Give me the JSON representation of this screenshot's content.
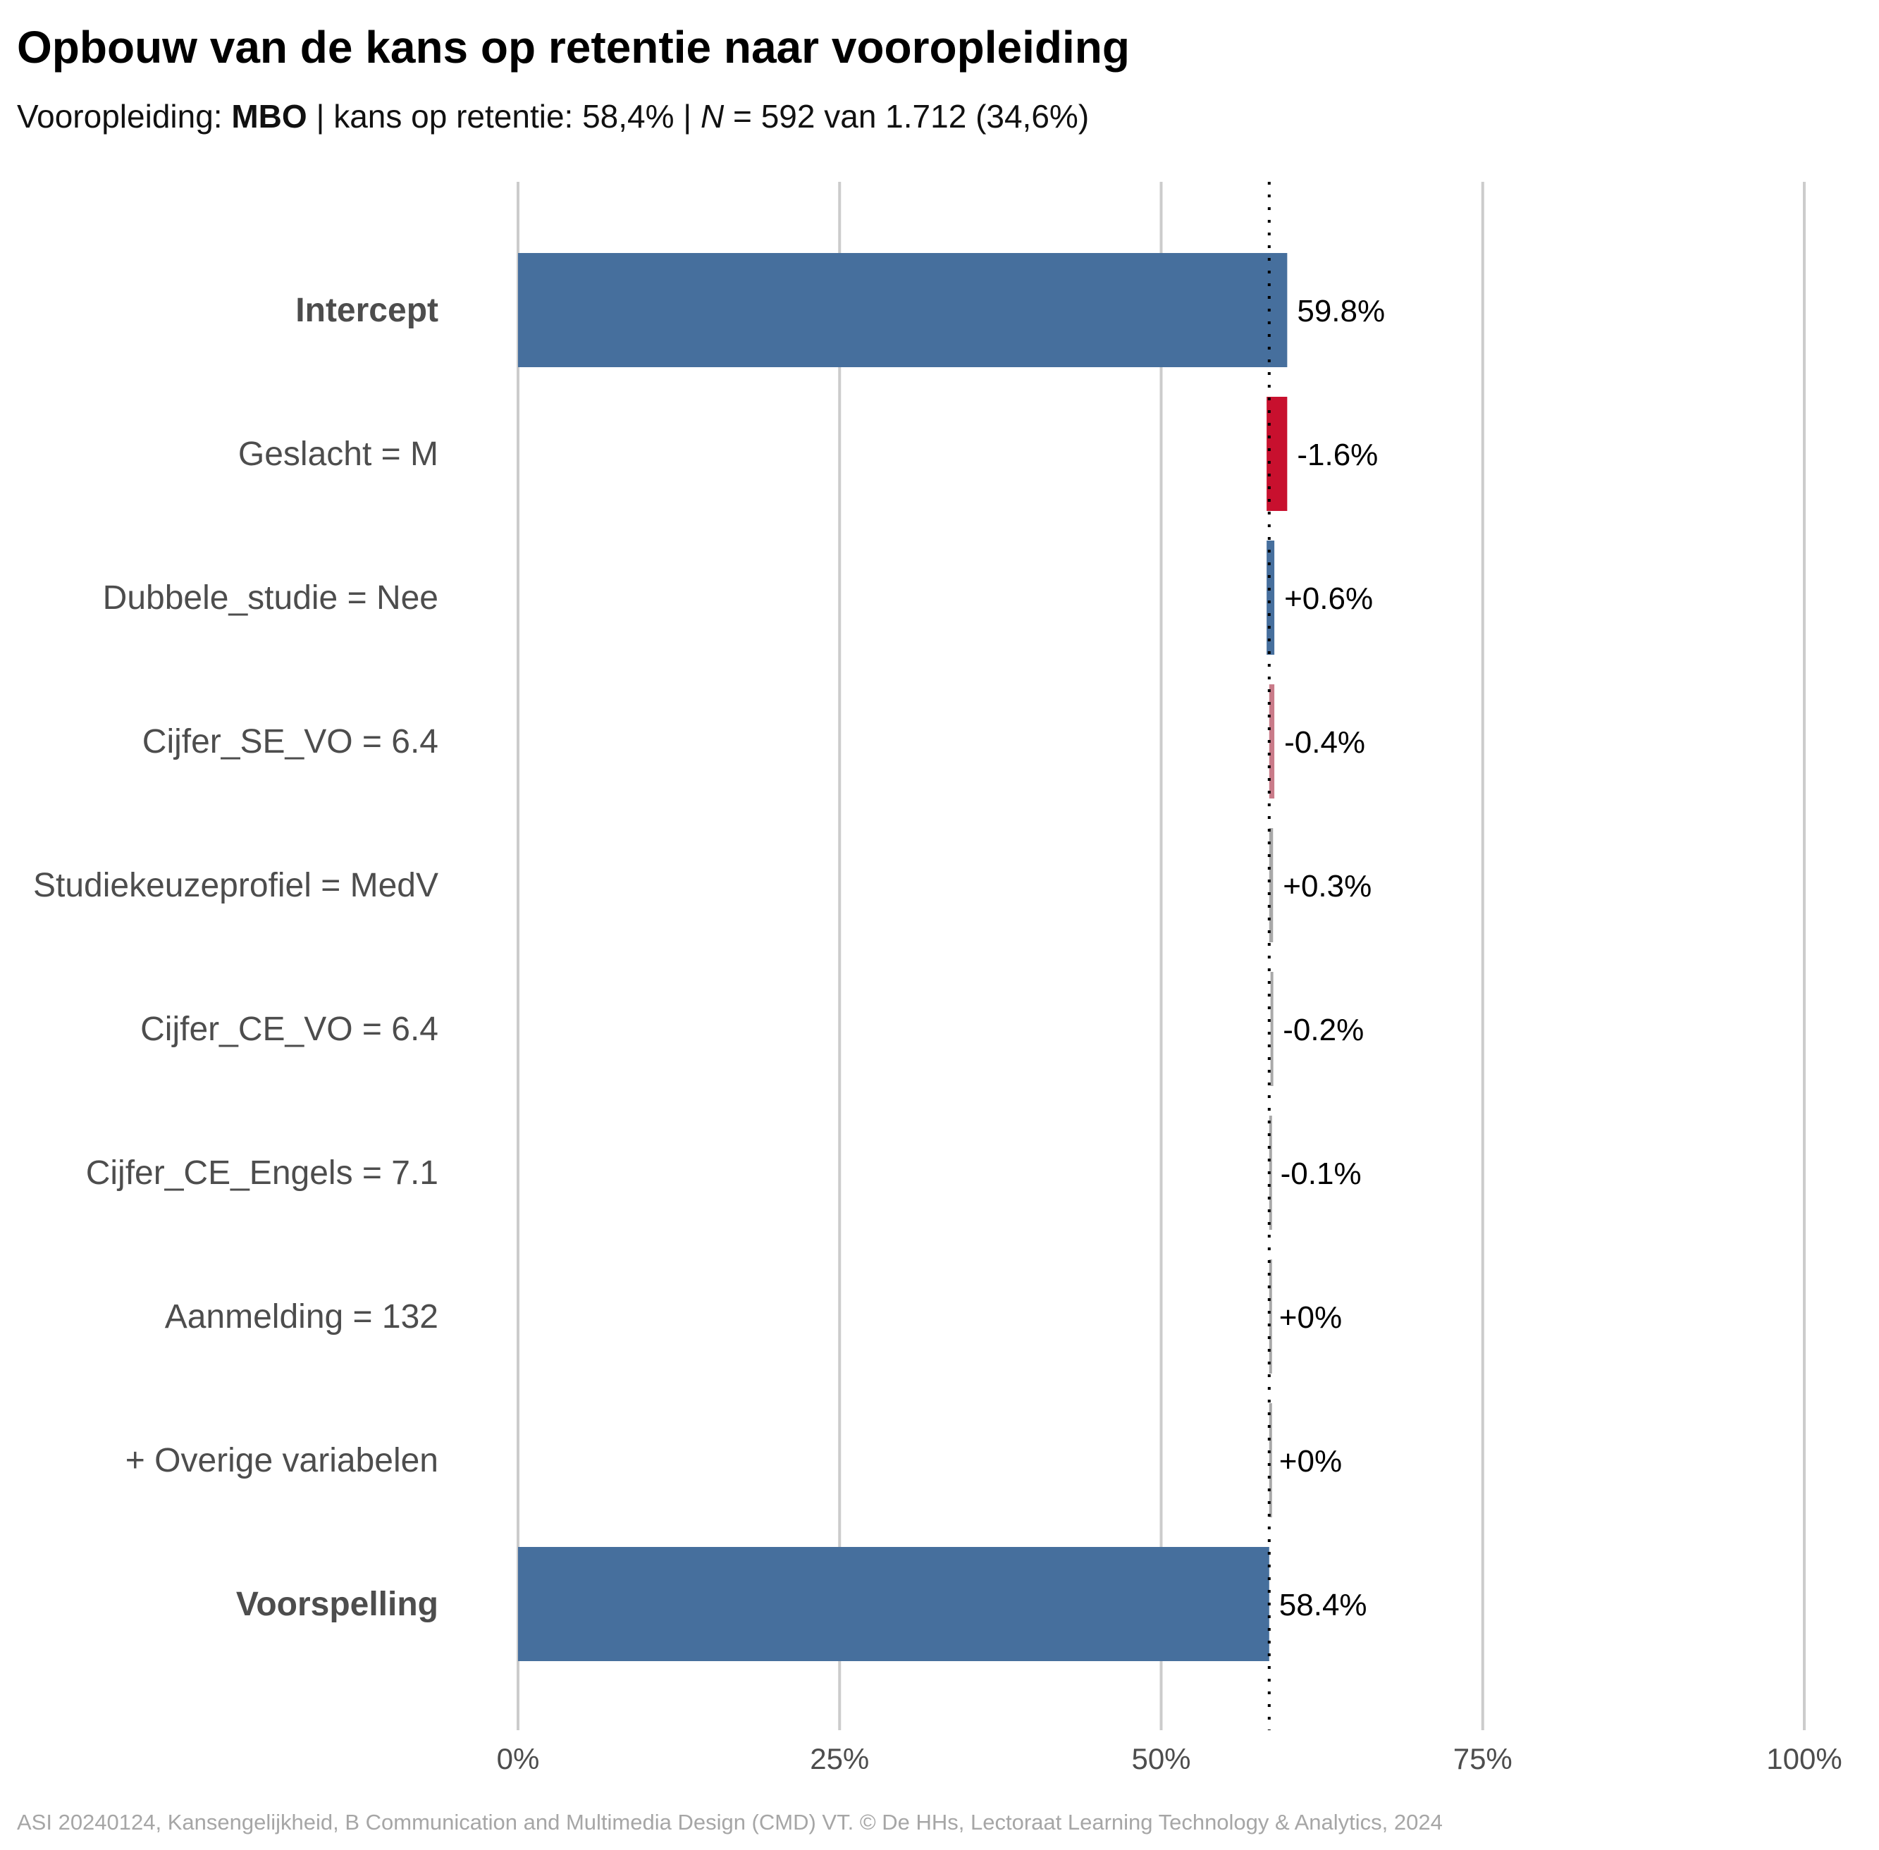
{
  "title": "Opbouw van de kans op retentie naar vooropleiding",
  "subtitle": {
    "prefix": "Vooropleiding: ",
    "group": "MBO",
    "sep1": " | kans op retentie: ",
    "probability": "58,4%",
    "sep2": " | ",
    "n_label": "N",
    "n_text": " = 592 van 1.712 (34,6%)"
  },
  "caption": "ASI 20240124, Kansengelijkheid, B Communication and Multimedia Design (CMD) VT. © De HHs, Lectoraat Learning Technology & Analytics, 2024",
  "colors": {
    "total": "#466f9d",
    "positive": "#466f9d",
    "negative": "#c8102e",
    "small_positive": "#8fa3bb",
    "small_negative": "#c97b89",
    "neutral": "#a9a9a9",
    "grid": "#cccccc"
  },
  "chart_data": {
    "type": "waterfall",
    "xlim": [
      0,
      100
    ],
    "ticks": [
      0,
      25,
      50,
      75,
      100
    ],
    "tick_labels": [
      "0%",
      "25%",
      "50%",
      "75%",
      "100%"
    ],
    "reference_line": 58.4,
    "reference_style": "dotted",
    "grid": true,
    "categories": [
      {
        "label": "Intercept",
        "bold": true,
        "kind": "total",
        "value": 59.8,
        "value_label": "59.8%"
      },
      {
        "label": "Geslacht = M",
        "bold": false,
        "kind": "delta",
        "value": -1.6,
        "value_label": "-1.6%"
      },
      {
        "label": "Dubbele_studie = Nee",
        "bold": false,
        "kind": "delta",
        "value": 0.6,
        "value_label": "+0.6%"
      },
      {
        "label": "Cijfer_SE_VO = 6.4",
        "bold": false,
        "kind": "delta",
        "value": -0.4,
        "value_label": "-0.4%"
      },
      {
        "label": "Studiekeuzeprofiel = MedV",
        "bold": false,
        "kind": "delta",
        "value": 0.3,
        "value_label": "+0.3%"
      },
      {
        "label": "Cijfer_CE_VO = 6.4",
        "bold": false,
        "kind": "delta",
        "value": -0.2,
        "value_label": "-0.2%"
      },
      {
        "label": "Cijfer_CE_Engels = 7.1",
        "bold": false,
        "kind": "delta",
        "value": -0.1,
        "value_label": "-0.1%"
      },
      {
        "label": "Aanmelding = 132",
        "bold": false,
        "kind": "delta",
        "value": 0.0,
        "value_label": "+0%"
      },
      {
        "label": "+ Overige variabelen",
        "bold": false,
        "kind": "delta",
        "value": 0.0,
        "value_label": "+0%"
      },
      {
        "label": "Voorspelling",
        "bold": true,
        "kind": "total",
        "value": 58.4,
        "value_label": "58.4%"
      }
    ]
  }
}
